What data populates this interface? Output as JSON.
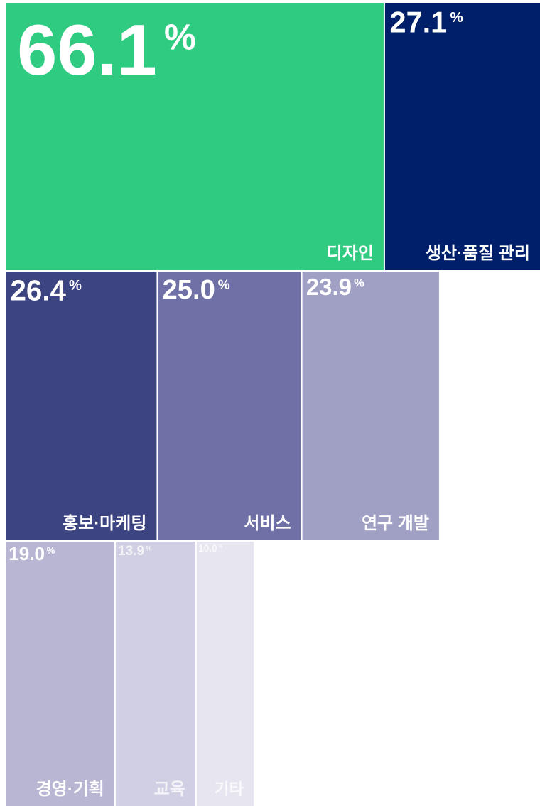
{
  "chart_data": {
    "type": "treemap",
    "categories": [
      "디자인",
      "생산·품질 관리",
      "홍보·마케팅",
      "서비스",
      "연구 개발",
      "경영·기획",
      "교육",
      "기타"
    ],
    "values": [
      66.1,
      27.1,
      26.4,
      25.0,
      23.9,
      19.0,
      13.9,
      10.0
    ],
    "value_labels": [
      "66.1%",
      "27.1%",
      "26.4%",
      "25.0%",
      "23.9%",
      "19.0%",
      "13.9%",
      "10.0%"
    ],
    "colors": [
      "#2ecb80",
      "#001f6b",
      "#3d4482",
      "#6f70a6",
      "#a0a0c4",
      "#b8b6d3",
      "#d1cfe3",
      "#e7e5f0"
    ]
  }
}
